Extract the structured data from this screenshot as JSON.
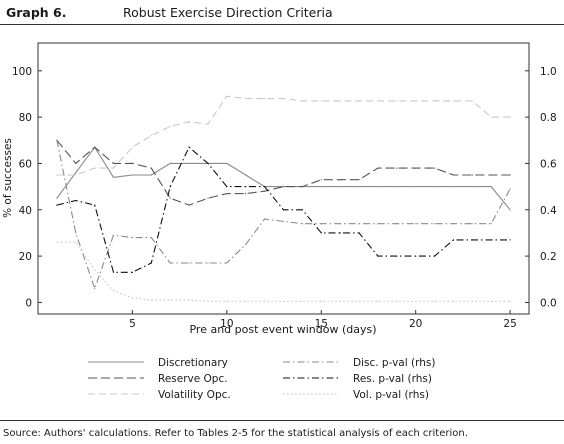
{
  "header": {
    "graph_number": "Graph 6.",
    "title": "Robust Exercise Direction Criteria"
  },
  "footer": {
    "source": "Source: Authors' calculations. Refer to Tables 2-5 for the statistical analysis of each criterion."
  },
  "colors": {
    "discretionary": "#8a8a8a",
    "reserve": "#555555",
    "volatility": "#c8c8c8",
    "disc_pval": "#8a8a8a",
    "res_pval": "#111111",
    "vol_pval": "#c8c8c8"
  },
  "chart_data": {
    "type": "line",
    "xlabel": "Pre and post event window (days)",
    "ylabel": "% of successes",
    "xlim": [
      0,
      26
    ],
    "ylim": [
      -5,
      112
    ],
    "y2lim": [
      -0.05,
      1.12
    ],
    "x_ticks": [
      5,
      10,
      15,
      20,
      25
    ],
    "y_ticks": [
      0,
      20,
      40,
      60,
      80,
      100
    ],
    "y2_ticks": [
      "0.0",
      "0.2",
      "0.4",
      "0.6",
      "0.8",
      "1.0"
    ],
    "y2_tick_values": [
      0,
      0.2,
      0.4,
      0.6,
      0.8,
      1.0
    ],
    "legend_position": "bottom",
    "x": [
      1,
      2,
      3,
      4,
      5,
      6,
      7,
      8,
      9,
      10,
      11,
      12,
      13,
      14,
      15,
      16,
      17,
      18,
      19,
      20,
      21,
      22,
      23,
      24,
      25
    ],
    "series": [
      {
        "name": "Discretionary",
        "axis": "left",
        "style": "solid",
        "color_key": "discretionary",
        "values": [
          45,
          56,
          67,
          54,
          55,
          55,
          60,
          60,
          60,
          60,
          55,
          50,
          50,
          50,
          50,
          50,
          50,
          50,
          50,
          50,
          50,
          50,
          50,
          50,
          40
        ]
      },
      {
        "name": "Reserve Opc.",
        "axis": "left",
        "style": "longdash",
        "color_key": "reserve",
        "values": [
          70,
          60,
          67,
          60,
          60,
          58,
          45,
          42,
          45,
          47,
          47,
          48,
          50,
          50,
          53,
          53,
          53,
          58,
          58,
          58,
          58,
          55,
          55,
          55,
          55
        ]
      },
      {
        "name": "Volatility Opc.",
        "axis": "left",
        "style": "dash",
        "color_key": "volatility",
        "values": [
          55,
          55,
          58,
          58,
          67,
          72,
          76,
          78,
          77,
          89,
          88,
          88,
          88,
          87,
          87,
          87,
          87,
          87,
          87,
          87,
          87,
          87,
          87,
          80,
          80
        ]
      },
      {
        "name": "Disc. p-val (rhs)",
        "axis": "right",
        "style": "dashdot",
        "color_key": "disc_pval",
        "values": [
          0.7,
          0.3,
          0.06,
          0.29,
          0.28,
          0.28,
          0.17,
          0.17,
          0.17,
          0.17,
          0.25,
          0.36,
          0.35,
          0.34,
          0.34,
          0.34,
          0.34,
          0.34,
          0.34,
          0.34,
          0.34,
          0.34,
          0.34,
          0.34,
          0.49
        ]
      },
      {
        "name": "Res. p-val (rhs)",
        "axis": "right",
        "style": "dashdot",
        "color_key": "res_pval",
        "values": [
          0.42,
          0.44,
          0.42,
          0.13,
          0.13,
          0.17,
          0.5,
          0.67,
          0.6,
          0.5,
          0.5,
          0.5,
          0.4,
          0.4,
          0.3,
          0.3,
          0.3,
          0.2,
          0.2,
          0.2,
          0.2,
          0.27,
          0.27,
          0.27,
          0.27
        ]
      },
      {
        "name": "Vol. p-val (rhs)",
        "axis": "right",
        "style": "dot",
        "color_key": "vol_pval",
        "values": [
          0.26,
          0.26,
          0.14,
          0.05,
          0.02,
          0.01,
          0.01,
          0.01,
          0.005,
          0.005,
          0.005,
          0.005,
          0.005,
          0.005,
          0.005,
          0.005,
          0.005,
          0.005,
          0.005,
          0.005,
          0.005,
          0.005,
          0.005,
          0.005,
          0.005
        ]
      }
    ]
  }
}
